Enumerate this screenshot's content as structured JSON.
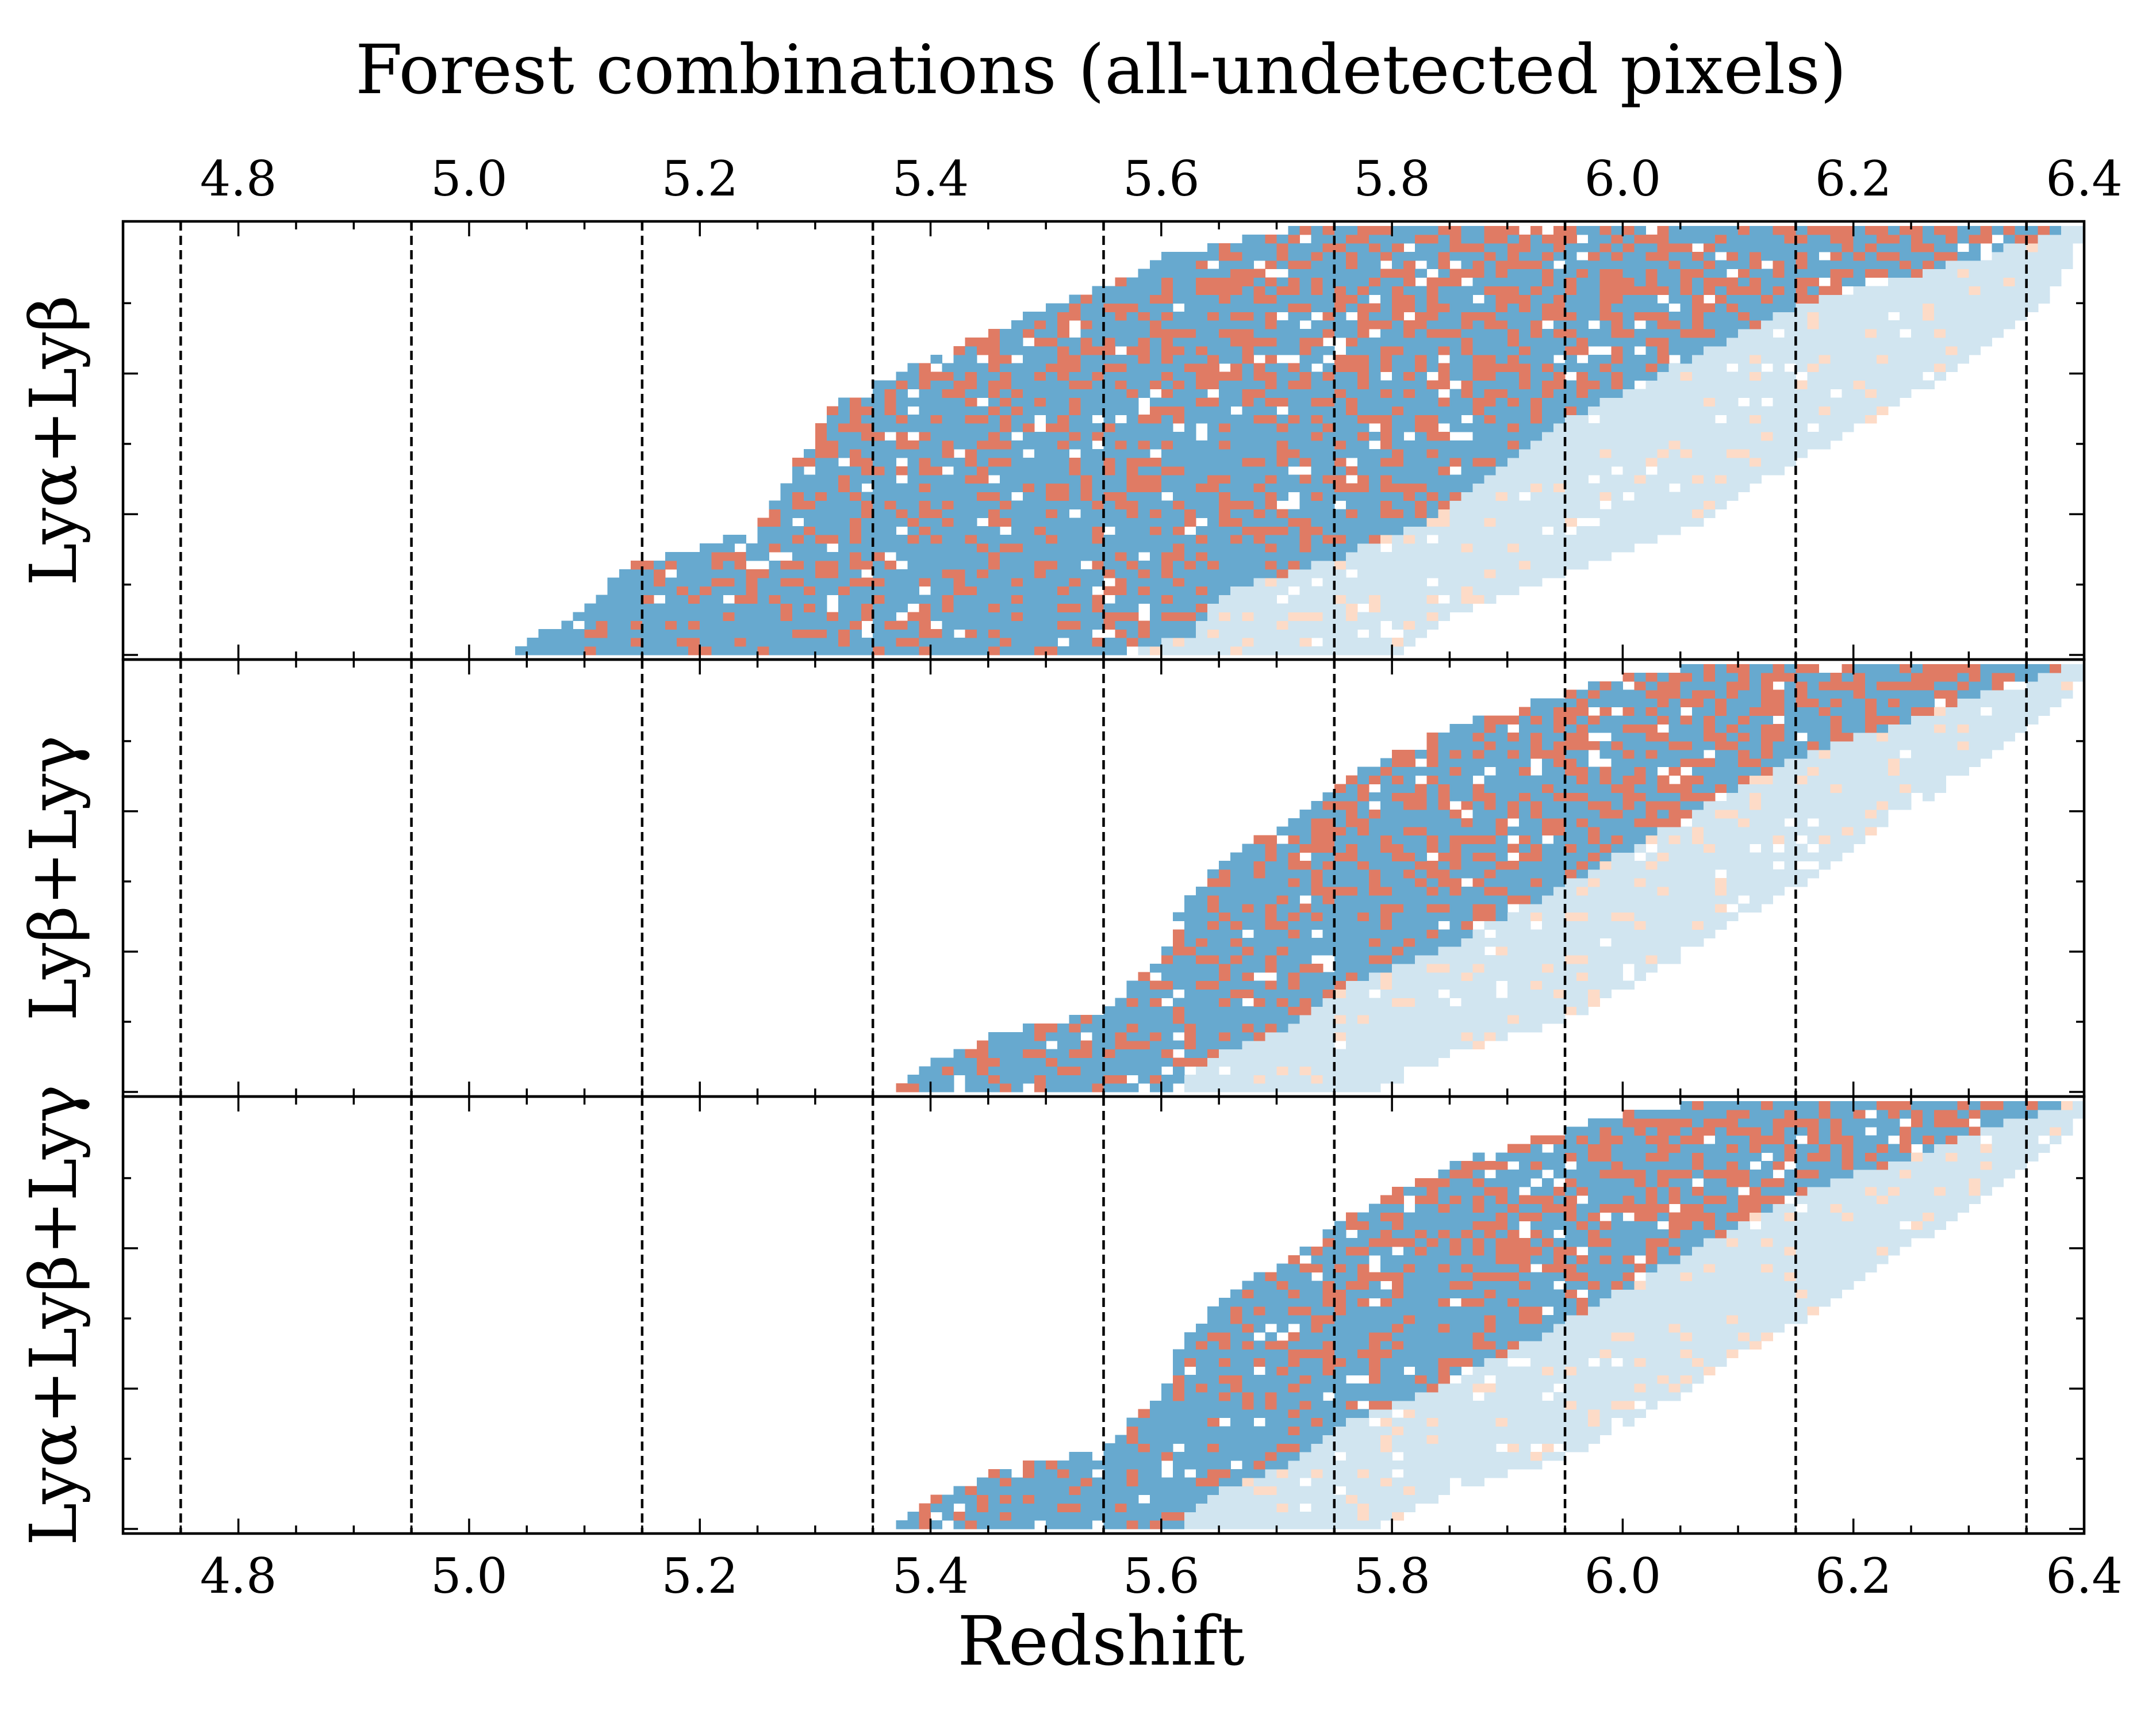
{
  "chart_data": {
    "type": "heatmap",
    "title": "Forest combinations (all-undetected pixels)",
    "xlabel": "Redshift",
    "xlim": [
      4.7,
      6.4
    ],
    "xticks": [
      4.8,
      5.0,
      5.2,
      5.4,
      5.6,
      5.8,
      6.0,
      6.2,
      6.4
    ],
    "xtick_labels": [
      "4.8",
      "5.0",
      "5.2",
      "5.4",
      "5.6",
      "5.8",
      "6.0",
      "6.2",
      "6.4"
    ],
    "bin_edges": [
      4.75,
      4.95,
      5.15,
      5.35,
      5.55,
      5.75,
      5.95,
      6.15,
      6.35
    ],
    "cell_dz": 0.01,
    "colors": {
      "dark_blue": "#67a9cf",
      "dark_red": "#e07b64",
      "light_blue": "#d1e5f0",
      "light_red": "#fddbc7",
      "gap": "#ffffff"
    },
    "panels": [
      {
        "name": "Lyα+Lyβ",
        "ylabel": "Lyα+Lyβ",
        "n_rows": 50,
        "start_points": [
          [
            5.04,
            0
          ],
          [
            5.09,
            4
          ],
          [
            5.14,
            10
          ],
          [
            5.25,
            14
          ],
          [
            5.31,
            28
          ],
          [
            5.35,
            31
          ],
          [
            5.45,
            37
          ],
          [
            5.5,
            40
          ],
          [
            5.56,
            43
          ],
          [
            5.6,
            46
          ],
          [
            5.67,
            48
          ],
          [
            5.75,
            50
          ]
        ],
        "end_points": [
          [
            5.56,
            0
          ],
          [
            5.62,
            2
          ],
          [
            5.65,
            7
          ],
          [
            5.75,
            11
          ],
          [
            5.82,
            15
          ],
          [
            5.88,
            21
          ],
          [
            5.96,
            28
          ],
          [
            6.05,
            34
          ],
          [
            6.14,
            40
          ],
          [
            6.25,
            44
          ],
          [
            6.3,
            46
          ],
          [
            6.4,
            50
          ]
        ],
        "light_end_points": [
          [
            5.81,
            0
          ],
          [
            5.85,
            4
          ],
          [
            5.95,
            9
          ],
          [
            6.05,
            14
          ],
          [
            6.12,
            20
          ],
          [
            6.2,
            26
          ],
          [
            6.3,
            34
          ],
          [
            6.35,
            39
          ],
          [
            6.38,
            44
          ],
          [
            6.4,
            50
          ]
        ],
        "seed": 11
      },
      {
        "name": "Lyβ+Lyγ",
        "ylabel": "Lyβ+Lyγ",
        "n_rows": 50,
        "start_points": [
          [
            5.37,
            0
          ],
          [
            5.39,
            2
          ],
          [
            5.45,
            6
          ],
          [
            5.55,
            9
          ],
          [
            5.6,
            15
          ],
          [
            5.62,
            22
          ],
          [
            5.66,
            27
          ],
          [
            5.72,
            32
          ],
          [
            5.77,
            37
          ],
          [
            5.85,
            42
          ],
          [
            5.92,
            45
          ],
          [
            6.0,
            48
          ],
          [
            6.1,
            50
          ]
        ],
        "end_points": [
          [
            5.61,
            0
          ],
          [
            5.63,
            3
          ],
          [
            5.7,
            7
          ],
          [
            5.75,
            12
          ],
          [
            5.85,
            17
          ],
          [
            5.92,
            22
          ],
          [
            6.0,
            28
          ],
          [
            6.08,
            34
          ],
          [
            6.15,
            39
          ],
          [
            6.22,
            42
          ],
          [
            6.3,
            46
          ],
          [
            6.4,
            50
          ]
        ],
        "light_end_points": [
          [
            5.79,
            0
          ],
          [
            5.85,
            4
          ],
          [
            5.95,
            8
          ],
          [
            6.03,
            14
          ],
          [
            6.1,
            20
          ],
          [
            6.18,
            26
          ],
          [
            6.25,
            33
          ],
          [
            6.33,
            40
          ],
          [
            6.38,
            45
          ],
          [
            6.4,
            50
          ]
        ],
        "seed": 23
      },
      {
        "name": "Lyα+Lyβ+Lyγ",
        "ylabel": "Lyα+Lyβ+Lyγ",
        "n_rows": 50,
        "start_points": [
          [
            5.37,
            0
          ],
          [
            5.39,
            2
          ],
          [
            5.45,
            6
          ],
          [
            5.55,
            9
          ],
          [
            5.6,
            15
          ],
          [
            5.62,
            22
          ],
          [
            5.66,
            27
          ],
          [
            5.72,
            32
          ],
          [
            5.77,
            37
          ],
          [
            5.85,
            42
          ],
          [
            5.92,
            45
          ],
          [
            6.0,
            48
          ],
          [
            6.1,
            50
          ]
        ],
        "end_points": [
          [
            5.61,
            0
          ],
          [
            5.63,
            3
          ],
          [
            5.7,
            7
          ],
          [
            5.75,
            12
          ],
          [
            5.85,
            17
          ],
          [
            5.92,
            22
          ],
          [
            6.0,
            28
          ],
          [
            6.08,
            34
          ],
          [
            6.15,
            39
          ],
          [
            6.22,
            42
          ],
          [
            6.3,
            46
          ],
          [
            6.4,
            50
          ]
        ],
        "light_end_points": [
          [
            5.79,
            0
          ],
          [
            5.85,
            4
          ],
          [
            5.95,
            8
          ],
          [
            6.03,
            14
          ],
          [
            6.1,
            20
          ],
          [
            6.18,
            26
          ],
          [
            6.25,
            33
          ],
          [
            6.33,
            40
          ],
          [
            6.38,
            45
          ],
          [
            6.4,
            50
          ]
        ],
        "seed": 37
      }
    ]
  }
}
